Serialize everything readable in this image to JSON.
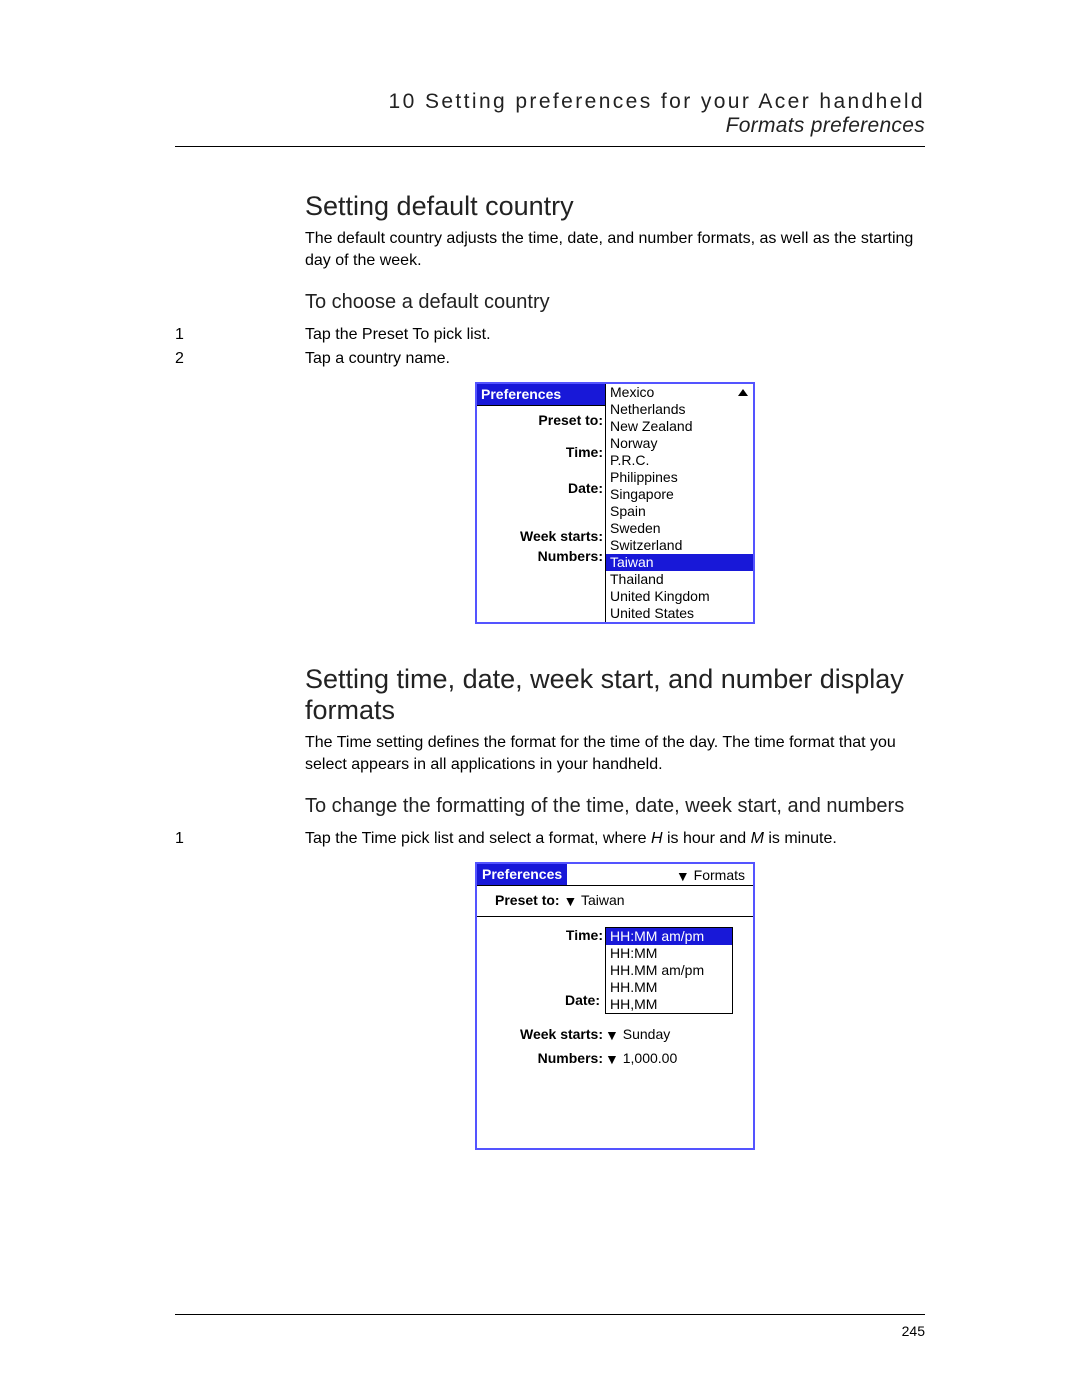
{
  "header": {
    "chapter": "10 Setting preferences for your Acer handheld",
    "section": "Formats preferences"
  },
  "sec1": {
    "title": "Setting default country",
    "desc": "The default country adjusts the time, date, and number formats, as well as the starting day of the week.",
    "subtitle": "To choose a default country",
    "steps": [
      "Tap the Preset To pick list.",
      "Tap a country name."
    ]
  },
  "fig1": {
    "tab": "Preferences",
    "labels": {
      "preset": "Preset to:",
      "time": "Time:",
      "date": "Date:",
      "week": "Week starts:",
      "numbers": "Numbers:"
    },
    "countries": [
      "Mexico",
      "Netherlands",
      "New Zealand",
      "Norway",
      "P.R.C.",
      "Philippines",
      "Singapore",
      "Spain",
      "Sweden",
      "Switzerland",
      "Taiwan",
      "Thailand",
      "United Kingdom",
      "United States"
    ],
    "selected": "Taiwan",
    "scroll_arrow": "⬆"
  },
  "sec2": {
    "title": "Setting time, date, week start, and number display formats",
    "desc": "The Time setting defines the format for the time of the day. The time format that you select appears in all applications in your handheld.",
    "subtitle": "To change the formatting of the time, date, week start, and numbers",
    "step1_pre": "Tap the Time pick list and select a format, where ",
    "step1_H": "H",
    "step1_mid": " is hour and ",
    "step1_M": "M",
    "step1_post": " is minute."
  },
  "fig2": {
    "tab": "Preferences",
    "menu": "Formats",
    "preset_label": "Preset to:",
    "preset_value": "Taiwan",
    "time_label": "Time:",
    "date_label": "Date:",
    "time_options": [
      "HH:MM am/pm",
      "HH:MM",
      "HH.MM am/pm",
      "HH.MM",
      "HH,MM"
    ],
    "time_selected": "HH:MM am/pm",
    "week_label": "Week starts:",
    "week_value": "Sunday",
    "numbers_label": "Numbers:",
    "numbers_value": "1,000.00"
  },
  "page_number": "245",
  "colors": {
    "accent": "#1818d8",
    "border": "#5454ff"
  }
}
